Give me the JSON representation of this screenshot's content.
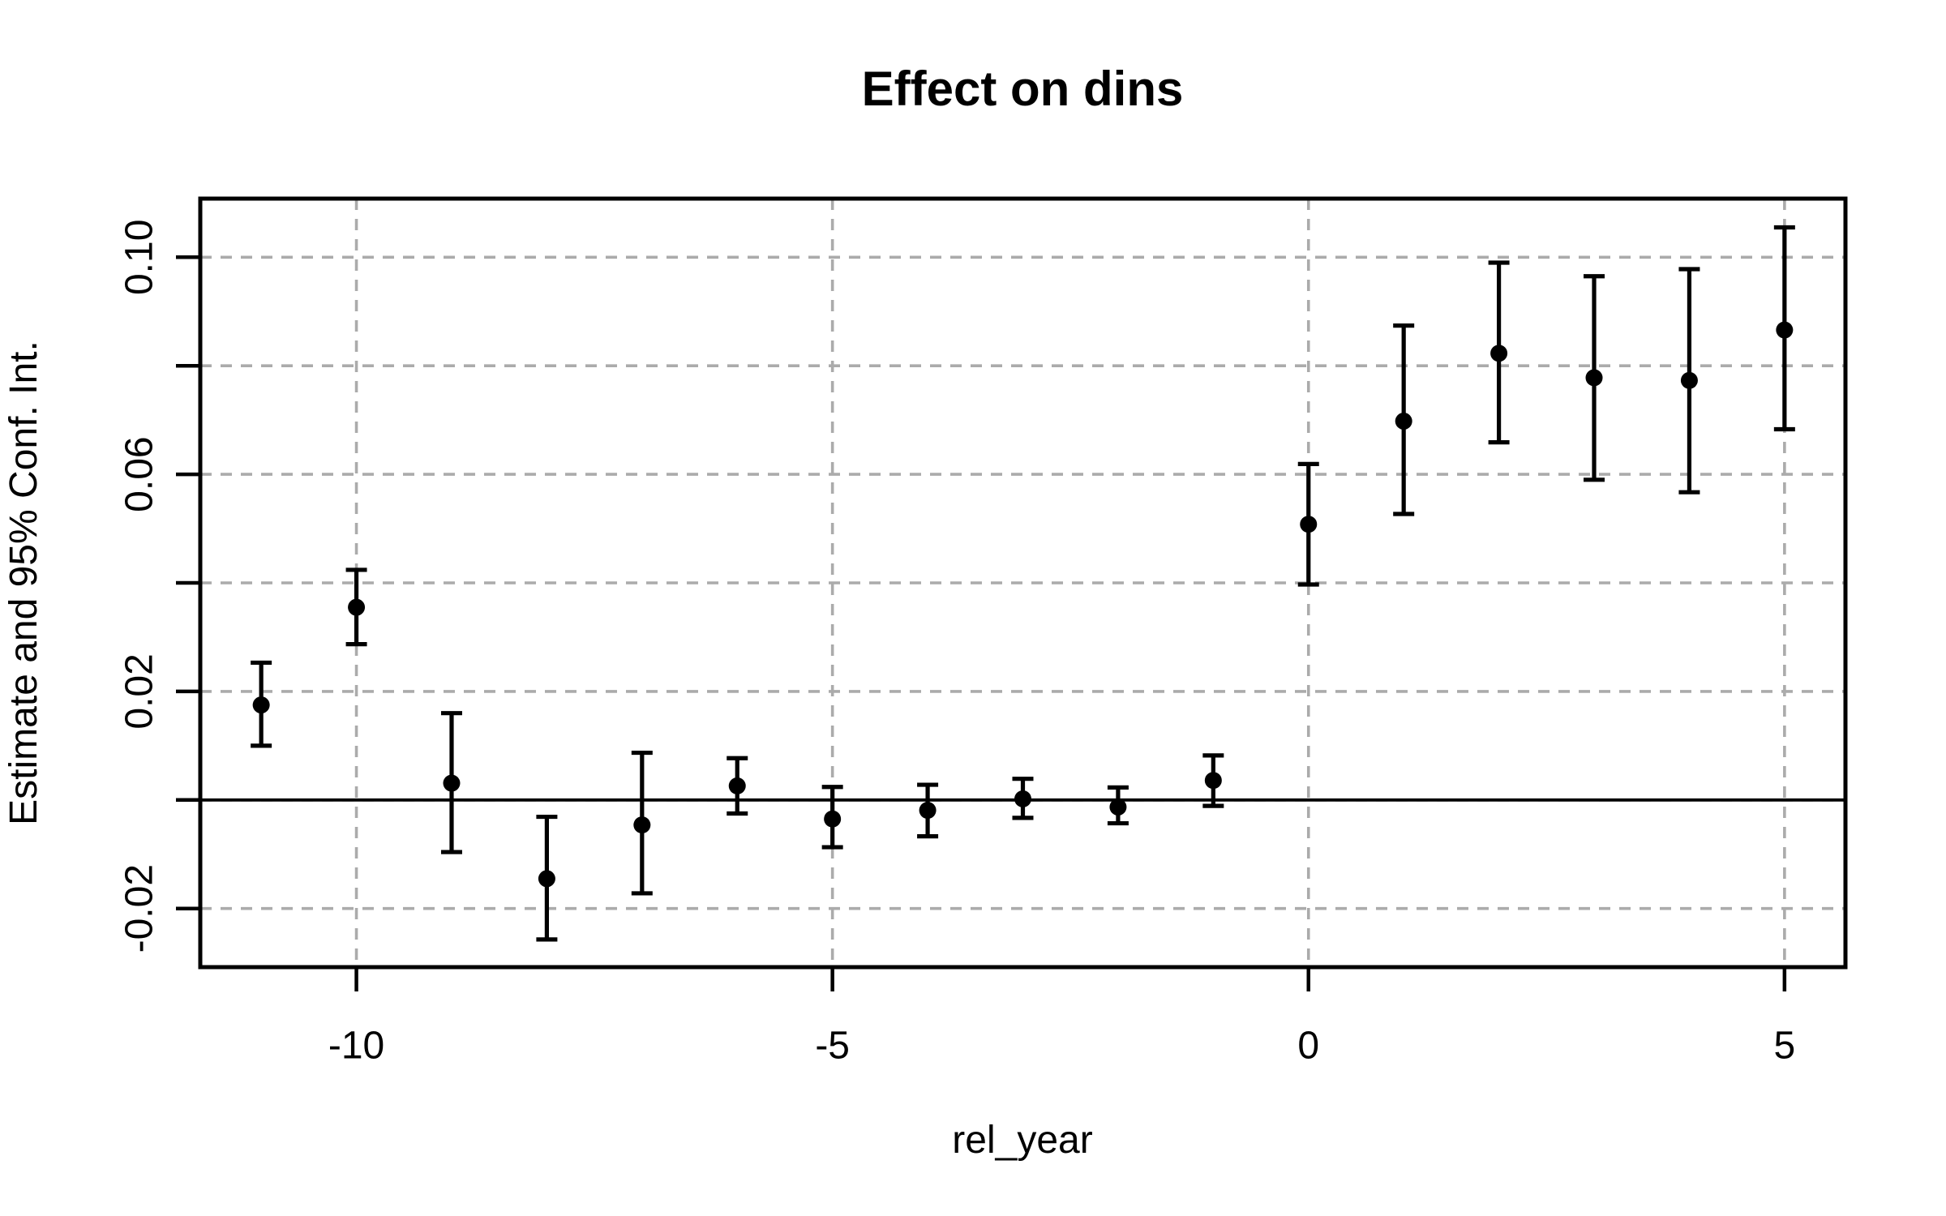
{
  "title": "Effect on dins",
  "chart_data": {
    "type": "scatter",
    "subtype": "event-study-errorbar",
    "title": "Effect on dins",
    "xlabel": "rel_year",
    "ylabel": "Estimate and 95% Conf. Int.",
    "x": [
      -11,
      -10,
      -9,
      -8,
      -7,
      -6,
      -5,
      -4,
      -3,
      -2,
      -1,
      0,
      1,
      2,
      3,
      4,
      5
    ],
    "series": [
      {
        "name": "estimate",
        "values": [
          0.0175,
          0.0355,
          0.0031,
          -0.0145,
          -0.0046,
          0.0026,
          -0.0035,
          -0.0019,
          0.0002,
          -0.0013,
          0.0036,
          0.0508,
          0.0698,
          0.0823,
          0.0778,
          0.0773,
          0.0866
        ]
      },
      {
        "name": "ci_lower_95",
        "values": [
          0.01,
          0.0287,
          -0.0096,
          -0.0257,
          -0.0172,
          -0.0025,
          -0.0087,
          -0.0067,
          -0.0033,
          -0.0043,
          -0.0011,
          0.0397,
          0.0527,
          0.0659,
          0.059,
          0.0567,
          0.0683
        ]
      },
      {
        "name": "ci_upper_95",
        "values": [
          0.0253,
          0.0424,
          0.016,
          -0.0031,
          0.0087,
          0.0077,
          0.0024,
          0.0028,
          0.0039,
          0.0023,
          0.0082,
          0.0619,
          0.0874,
          0.099,
          0.0965,
          0.0978,
          0.1055
        ]
      }
    ],
    "xlim": [
      -11.64,
      5.64
    ],
    "ylim": [
      -0.0308,
      0.1108
    ],
    "x_ticks": [
      -10,
      -5,
      0,
      5
    ],
    "x_tick_labels": [
      "-10",
      "-5",
      "0",
      "5"
    ],
    "y_ticks": [
      -0.02,
      0,
      0.02,
      0.04,
      0.06,
      0.08,
      0.1
    ],
    "y_tick_labels": [
      "-0.02",
      "",
      "0.02",
      "",
      "0.06",
      "",
      "0.10"
    ],
    "grid": true,
    "grid_style": "dashed",
    "legend": "none",
    "reference_line_y": 0,
    "colors": {
      "point": "#000000",
      "error_bar": "#000000",
      "gridline": "#ababab",
      "frame": "#000000",
      "zero_line": "#000000",
      "background": "#ffffff"
    }
  }
}
